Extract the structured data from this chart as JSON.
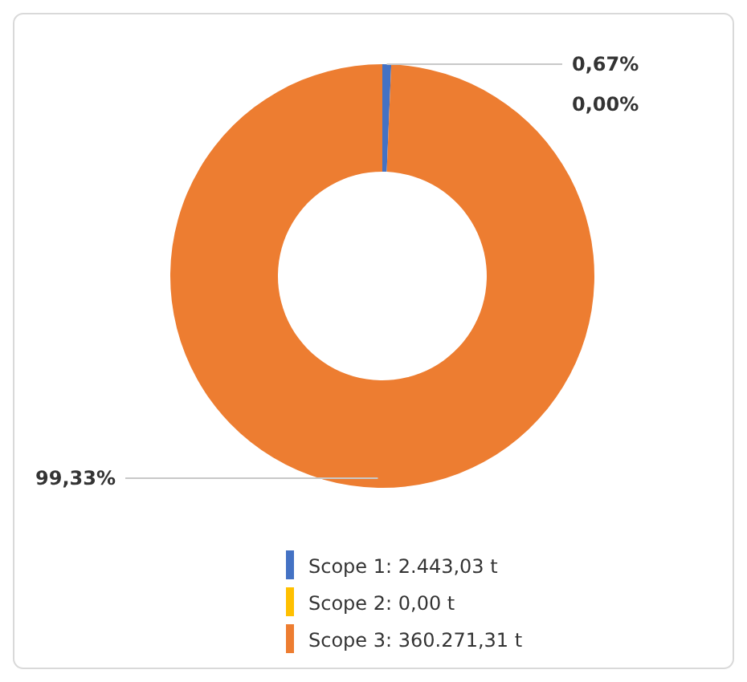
{
  "chart_data": {
    "type": "donut",
    "categories": [
      "Scope 1: 2.443,03 t",
      "Scope 2: 0,00 t",
      "Scope 3: 360.271,31 t"
    ],
    "values": [
      0.67,
      0,
      99.33
    ],
    "value_labels": [
      "0,67%",
      "0,00%",
      "99,33%"
    ],
    "colors": [
      "#4472c4",
      "#ffc000",
      "#ed7d31"
    ],
    "legend": "bottom"
  }
}
